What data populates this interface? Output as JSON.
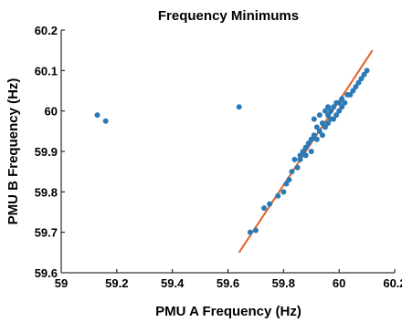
{
  "chart_data": {
    "type": "scatter",
    "title": "Frequency Minimums",
    "xlabel": "PMU A Frequency (Hz)",
    "ylabel": "PMU B Frequency (Hz)",
    "xlim": [
      59,
      60.2
    ],
    "ylim": [
      59.6,
      60.2
    ],
    "x_ticks": [
      "59",
      "59.2",
      "59.4",
      "59.6",
      "59.8",
      "60",
      "60.2"
    ],
    "y_ticks": [
      "59.6",
      "59.7",
      "59.8",
      "59.9",
      "60",
      "60.1",
      "60.2"
    ],
    "grid": false,
    "legend": "none",
    "colors": {
      "points": "#2a7ab8",
      "fit_line": "#e0602a",
      "axes": "#000000"
    },
    "series": [
      {
        "kind": "points",
        "points": [
          [
            59.13,
            59.99
          ],
          [
            59.16,
            59.975
          ],
          [
            59.64,
            60.01
          ],
          [
            59.68,
            59.7
          ],
          [
            59.7,
            59.705
          ],
          [
            59.73,
            59.76
          ],
          [
            59.75,
            59.77
          ],
          [
            59.78,
            59.79
          ],
          [
            59.8,
            59.8
          ],
          [
            59.81,
            59.82
          ],
          [
            59.82,
            59.83
          ],
          [
            59.83,
            59.85
          ],
          [
            59.84,
            59.88
          ],
          [
            59.85,
            59.86
          ],
          [
            59.86,
            59.88
          ],
          [
            59.86,
            59.89
          ],
          [
            59.87,
            59.9
          ],
          [
            59.88,
            59.89
          ],
          [
            59.88,
            59.91
          ],
          [
            59.89,
            59.92
          ],
          [
            59.9,
            59.9
          ],
          [
            59.9,
            59.93
          ],
          [
            59.91,
            59.94
          ],
          [
            59.91,
            59.98
          ],
          [
            59.92,
            59.93
          ],
          [
            59.92,
            59.96
          ],
          [
            59.93,
            59.95
          ],
          [
            59.93,
            59.99
          ],
          [
            59.94,
            59.94
          ],
          [
            59.94,
            59.97
          ],
          [
            59.95,
            59.96
          ],
          [
            59.95,
            60.0
          ],
          [
            59.96,
            59.97
          ],
          [
            59.96,
            59.99
          ],
          [
            59.96,
            60.01
          ],
          [
            59.97,
            59.98
          ],
          [
            59.97,
            60.0
          ],
          [
            59.98,
            59.98
          ],
          [
            59.98,
            60.01
          ],
          [
            59.99,
            59.99
          ],
          [
            59.99,
            60.02
          ],
          [
            60.0,
            60.0
          ],
          [
            60.0,
            60.02
          ],
          [
            60.01,
            60.01
          ],
          [
            60.01,
            60.03
          ],
          [
            60.02,
            60.02
          ],
          [
            60.03,
            60.04
          ],
          [
            60.04,
            60.04
          ],
          [
            60.05,
            60.05
          ],
          [
            60.06,
            60.06
          ],
          [
            60.07,
            60.07
          ],
          [
            60.08,
            60.08
          ],
          [
            60.09,
            60.09
          ],
          [
            60.1,
            60.1
          ]
        ]
      },
      {
        "kind": "fit_line",
        "points": [
          [
            59.64,
            59.65
          ],
          [
            60.12,
            60.15
          ]
        ]
      }
    ]
  }
}
